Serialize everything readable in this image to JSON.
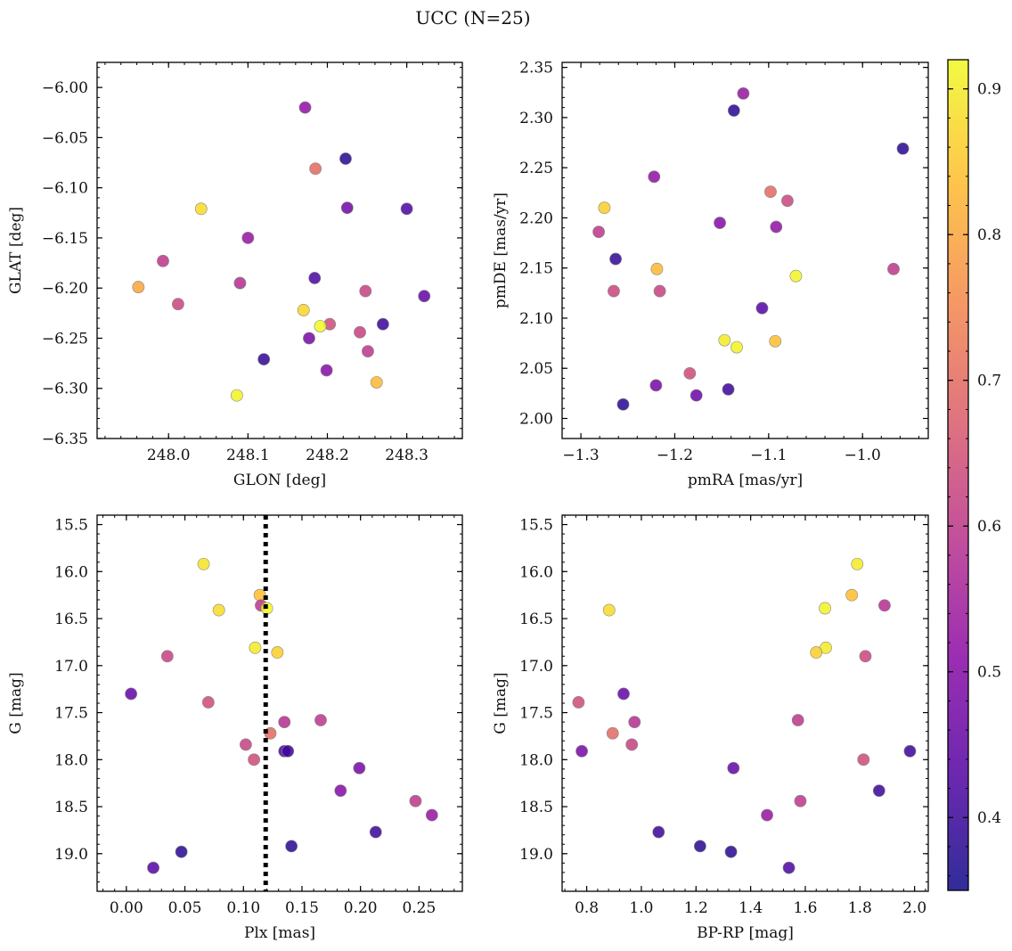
{
  "title": "UCC (N=25)",
  "colorbar": {
    "colormap": "plasma",
    "range": [
      0.35,
      0.92
    ],
    "ticks": [
      "0.4",
      "0.5",
      "0.6",
      "0.7",
      "0.8",
      "0.9"
    ]
  },
  "chart_data": [
    {
      "type": "scatter",
      "title": "",
      "xlabel": "GLON [deg]",
      "ylabel": "GLAT [deg]",
      "xlim": [
        247.91,
        248.37
      ],
      "ylim": [
        -6.35,
        -5.975
      ],
      "xticks": [
        "248.0",
        "248.1",
        "248.2",
        "248.3"
      ],
      "yticks": [
        "−6.00",
        "−6.05",
        "−6.10",
        "−6.15",
        "−6.20",
        "−6.25",
        "−6.30",
        "−6.35"
      ],
      "inverted_y": false,
      "points": [
        {
          "x": 248.172,
          "y": -6.02,
          "c": 0.52
        },
        {
          "x": 248.223,
          "y": -6.071,
          "c": 0.38
        },
        {
          "x": 248.185,
          "y": -6.081,
          "c": 0.7
        },
        {
          "x": 248.225,
          "y": -6.12,
          "c": 0.47
        },
        {
          "x": 248.3,
          "y": -6.121,
          "c": 0.42
        },
        {
          "x": 248.041,
          "y": -6.121,
          "c": 0.88
        },
        {
          "x": 248.1,
          "y": -6.15,
          "c": 0.53
        },
        {
          "x": 247.993,
          "y": -6.173,
          "c": 0.6
        },
        {
          "x": 248.184,
          "y": -6.19,
          "c": 0.42
        },
        {
          "x": 248.09,
          "y": -6.195,
          "c": 0.58
        },
        {
          "x": 247.962,
          "y": -6.199,
          "c": 0.8
        },
        {
          "x": 248.248,
          "y": -6.203,
          "c": 0.62
        },
        {
          "x": 248.322,
          "y": -6.208,
          "c": 0.45
        },
        {
          "x": 248.012,
          "y": -6.216,
          "c": 0.63
        },
        {
          "x": 248.17,
          "y": -6.222,
          "c": 0.87
        },
        {
          "x": 248.27,
          "y": -6.236,
          "c": 0.4
        },
        {
          "x": 248.203,
          "y": -6.236,
          "c": 0.64
        },
        {
          "x": 248.191,
          "y": -6.238,
          "c": 0.92
        },
        {
          "x": 248.241,
          "y": -6.244,
          "c": 0.62
        },
        {
          "x": 248.177,
          "y": -6.25,
          "c": 0.48
        },
        {
          "x": 248.251,
          "y": -6.263,
          "c": 0.6
        },
        {
          "x": 248.12,
          "y": -6.271,
          "c": 0.39
        },
        {
          "x": 248.199,
          "y": -6.282,
          "c": 0.5
        },
        {
          "x": 248.262,
          "y": -6.294,
          "c": 0.83
        },
        {
          "x": 248.086,
          "y": -6.307,
          "c": 0.91
        }
      ]
    },
    {
      "type": "scatter",
      "title": "",
      "xlabel": "pmRA [mas/yr]",
      "ylabel": "pmDE [mas/yr]",
      "xlim": [
        -1.32,
        -0.93
      ],
      "ylim": [
        1.98,
        2.355
      ],
      "xticks": [
        "−1.3",
        "−1.2",
        "−1.1",
        "−1.0"
      ],
      "yticks": [
        "2.00",
        "2.05",
        "2.10",
        "2.15",
        "2.20",
        "2.25",
        "2.30",
        "2.35"
      ],
      "inverted_y": false,
      "points": [
        {
          "x": -1.127,
          "y": 2.324,
          "c": 0.53
        },
        {
          "x": -1.137,
          "y": 2.307,
          "c": 0.38
        },
        {
          "x": -0.957,
          "y": 2.269,
          "c": 0.38
        },
        {
          "x": -1.222,
          "y": 2.241,
          "c": 0.52
        },
        {
          "x": -1.098,
          "y": 2.226,
          "c": 0.7
        },
        {
          "x": -1.08,
          "y": 2.217,
          "c": 0.63
        },
        {
          "x": -1.275,
          "y": 2.21,
          "c": 0.86
        },
        {
          "x": -1.152,
          "y": 2.195,
          "c": 0.5
        },
        {
          "x": -1.092,
          "y": 2.191,
          "c": 0.52
        },
        {
          "x": -1.281,
          "y": 2.186,
          "c": 0.6
        },
        {
          "x": -1.263,
          "y": 2.159,
          "c": 0.39
        },
        {
          "x": -1.219,
          "y": 2.149,
          "c": 0.83
        },
        {
          "x": -0.967,
          "y": 2.149,
          "c": 0.6
        },
        {
          "x": -1.071,
          "y": 2.142,
          "c": 0.91
        },
        {
          "x": -1.265,
          "y": 2.127,
          "c": 0.63
        },
        {
          "x": -1.216,
          "y": 2.127,
          "c": 0.62
        },
        {
          "x": -1.107,
          "y": 2.11,
          "c": 0.43
        },
        {
          "x": -1.147,
          "y": 2.078,
          "c": 0.9
        },
        {
          "x": -1.093,
          "y": 2.077,
          "c": 0.84
        },
        {
          "x": -1.134,
          "y": 2.071,
          "c": 0.91
        },
        {
          "x": -1.184,
          "y": 2.045,
          "c": 0.64
        },
        {
          "x": -1.22,
          "y": 2.033,
          "c": 0.48
        },
        {
          "x": -1.143,
          "y": 2.029,
          "c": 0.4
        },
        {
          "x": -1.177,
          "y": 2.023,
          "c": 0.46
        },
        {
          "x": -1.255,
          "y": 2.014,
          "c": 0.38
        }
      ]
    },
    {
      "type": "scatter",
      "title": "",
      "xlabel": "Plx [mas]",
      "ylabel": "G [mag]",
      "xlim": [
        -0.025,
        0.287
      ],
      "ylim": [
        19.4,
        15.4
      ],
      "xticks": [
        "0.00",
        "0.05",
        "0.10",
        "0.15",
        "0.20",
        "0.25"
      ],
      "yticks": [
        "15.5",
        "16.0",
        "16.5",
        "17.0",
        "17.5",
        "18.0",
        "18.5",
        "19.0"
      ],
      "inverted_y": true,
      "vline": {
        "x": 0.119,
        "style": "dotted"
      },
      "points": [
        {
          "x": 0.066,
          "y": 15.92,
          "c": 0.89
        },
        {
          "x": 0.114,
          "y": 16.25,
          "c": 0.84
        },
        {
          "x": 0.115,
          "y": 16.36,
          "c": 0.6
        },
        {
          "x": 0.12,
          "y": 16.39,
          "c": 0.92
        },
        {
          "x": 0.079,
          "y": 16.41,
          "c": 0.88
        },
        {
          "x": 0.11,
          "y": 16.81,
          "c": 0.9
        },
        {
          "x": 0.129,
          "y": 16.86,
          "c": 0.86
        },
        {
          "x": 0.035,
          "y": 16.9,
          "c": 0.62
        },
        {
          "x": 0.004,
          "y": 17.3,
          "c": 0.45
        },
        {
          "x": 0.07,
          "y": 17.39,
          "c": 0.64
        },
        {
          "x": 0.166,
          "y": 17.58,
          "c": 0.6
        },
        {
          "x": 0.135,
          "y": 17.6,
          "c": 0.58
        },
        {
          "x": 0.123,
          "y": 17.72,
          "c": 0.7
        },
        {
          "x": 0.102,
          "y": 17.84,
          "c": 0.62
        },
        {
          "x": 0.135,
          "y": 17.91,
          "c": 0.42
        },
        {
          "x": 0.138,
          "y": 17.91,
          "c": 0.4
        },
        {
          "x": 0.109,
          "y": 18.0,
          "c": 0.64
        },
        {
          "x": 0.199,
          "y": 18.09,
          "c": 0.48
        },
        {
          "x": 0.183,
          "y": 18.33,
          "c": 0.5
        },
        {
          "x": 0.247,
          "y": 18.44,
          "c": 0.6
        },
        {
          "x": 0.261,
          "y": 18.59,
          "c": 0.53
        },
        {
          "x": 0.213,
          "y": 18.77,
          "c": 0.4
        },
        {
          "x": 0.141,
          "y": 18.92,
          "c": 0.38
        },
        {
          "x": 0.047,
          "y": 18.98,
          "c": 0.38
        },
        {
          "x": 0.023,
          "y": 19.15,
          "c": 0.43
        }
      ]
    },
    {
      "type": "scatter",
      "title": "",
      "xlabel": "BP-RP [mag]",
      "ylabel": "G [mag]",
      "xlim": [
        0.71,
        2.05
      ],
      "ylim": [
        19.4,
        15.4
      ],
      "xticks": [
        "0.8",
        "1.0",
        "1.2",
        "1.4",
        "1.6",
        "1.8",
        "2.0"
      ],
      "yticks": [
        "15.5",
        "16.0",
        "16.5",
        "17.0",
        "17.5",
        "18.0",
        "18.5",
        "19.0"
      ],
      "inverted_y": true,
      "points": [
        {
          "x": 1.79,
          "y": 15.92,
          "c": 0.9
        },
        {
          "x": 1.77,
          "y": 16.25,
          "c": 0.84
        },
        {
          "x": 1.89,
          "y": 16.36,
          "c": 0.58
        },
        {
          "x": 1.672,
          "y": 16.39,
          "c": 0.91
        },
        {
          "x": 0.882,
          "y": 16.41,
          "c": 0.88
        },
        {
          "x": 1.675,
          "y": 16.81,
          "c": 0.9
        },
        {
          "x": 1.64,
          "y": 16.86,
          "c": 0.86
        },
        {
          "x": 1.82,
          "y": 16.9,
          "c": 0.63
        },
        {
          "x": 0.935,
          "y": 17.3,
          "c": 0.45
        },
        {
          "x": 0.77,
          "y": 17.39,
          "c": 0.64
        },
        {
          "x": 1.573,
          "y": 17.58,
          "c": 0.6
        },
        {
          "x": 0.975,
          "y": 17.6,
          "c": 0.58
        },
        {
          "x": 0.895,
          "y": 17.72,
          "c": 0.7
        },
        {
          "x": 0.965,
          "y": 17.84,
          "c": 0.62
        },
        {
          "x": 0.782,
          "y": 17.91,
          "c": 0.48
        },
        {
          "x": 1.983,
          "y": 17.91,
          "c": 0.4
        },
        {
          "x": 1.813,
          "y": 18.0,
          "c": 0.64
        },
        {
          "x": 1.337,
          "y": 18.09,
          "c": 0.45
        },
        {
          "x": 1.87,
          "y": 18.33,
          "c": 0.4
        },
        {
          "x": 1.582,
          "y": 18.44,
          "c": 0.6
        },
        {
          "x": 1.46,
          "y": 18.59,
          "c": 0.53
        },
        {
          "x": 1.063,
          "y": 18.77,
          "c": 0.4
        },
        {
          "x": 1.215,
          "y": 18.92,
          "c": 0.38
        },
        {
          "x": 1.328,
          "y": 18.98,
          "c": 0.38
        },
        {
          "x": 1.54,
          "y": 19.15,
          "c": 0.42
        }
      ]
    }
  ]
}
